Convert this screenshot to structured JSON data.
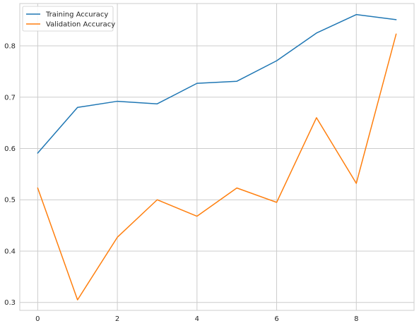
{
  "chart_data": {
    "type": "line",
    "title": "",
    "xlabel": "",
    "ylabel": "",
    "x": [
      0,
      1,
      2,
      3,
      4,
      5,
      6,
      7,
      8,
      9
    ],
    "series": [
      {
        "name": "Training Accuracy",
        "color": "#1f77b4",
        "values": [
          0.591,
          0.68,
          0.692,
          0.687,
          0.727,
          0.731,
          0.771,
          0.825,
          0.861,
          0.851
        ]
      },
      {
        "name": "Validation Accuracy",
        "color": "#ff7f0e",
        "values": [
          0.523,
          0.305,
          0.427,
          0.5,
          0.468,
          0.523,
          0.495,
          0.66,
          0.532,
          0.823
        ]
      }
    ],
    "xticks": [
      "0",
      "2",
      "4",
      "6",
      "8"
    ],
    "yticks": [
      "0.3",
      "0.4",
      "0.5",
      "0.6",
      "0.7",
      "0.8"
    ],
    "xlim": [
      -0.45,
      9.45
    ],
    "ylim": [
      0.2845,
      0.8825
    ],
    "grid": true,
    "legend_position": "top-left"
  }
}
